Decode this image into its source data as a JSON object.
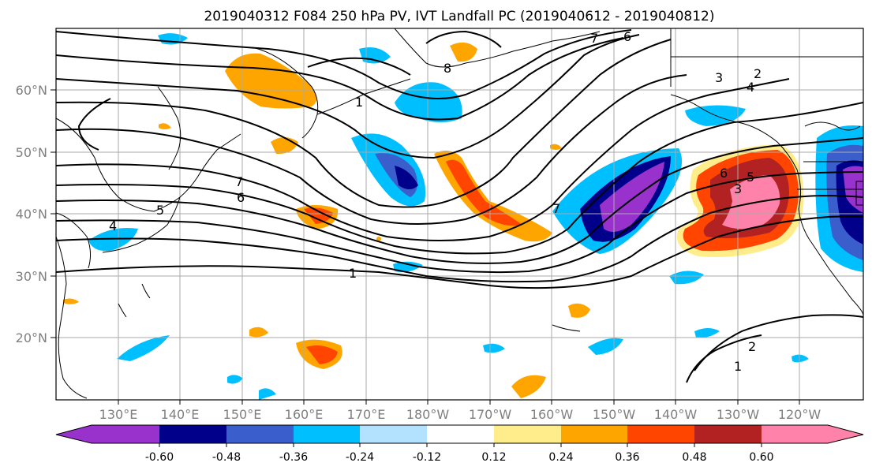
{
  "title": "2019040312 F084 250 hPa PV, IVT Landfall PC (2019040612 - 2019040812)",
  "lat_labels": [
    "60°N",
    "50°N",
    "40°N",
    "30°N",
    "20°N"
  ],
  "lon_labels": [
    "130°E",
    "140°E",
    "150°E",
    "160°E",
    "170°E",
    "180°W",
    "170°W",
    "160°W",
    "150°W",
    "140°W",
    "130°W",
    "120°W"
  ],
  "colorbar": {
    "colors": [
      "#9932cc",
      "#00008b",
      "#3a5fcd",
      "#00bfff",
      "#b2e2ff",
      "#ffffff",
      "#ffec8b",
      "#ffa500",
      "#ff4500",
      "#b22222",
      "#ff82ab"
    ],
    "tick_labels": [
      "-0.60",
      "-0.48",
      "-0.36",
      "-0.24",
      "-0.12",
      "0.12",
      "0.24",
      "0.36",
      "0.48",
      "0.60"
    ]
  },
  "contour_labels": [
    "1",
    "2",
    "3",
    "4",
    "5",
    "6",
    "7",
    "8"
  ]
}
